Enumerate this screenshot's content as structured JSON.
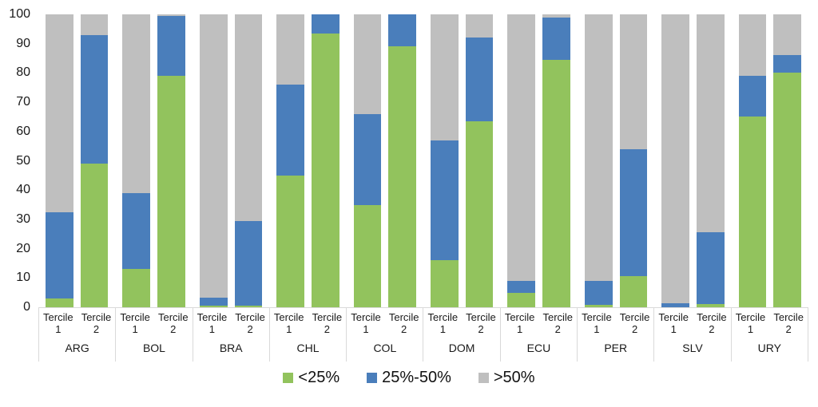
{
  "chart_data": {
    "type": "bar",
    "stacked": true,
    "title": "",
    "xlabel": "",
    "ylabel": "",
    "ylim": [
      0,
      100
    ],
    "grid": false,
    "legend_position": "bottom",
    "y_ticks": [
      "0",
      "10",
      "20",
      "30",
      "40",
      "50",
      "60",
      "70",
      "80",
      "90",
      "100"
    ],
    "series_names": [
      "<25%",
      "25%-50%",
      ">50%"
    ],
    "colors": {
      "lt25": "#92C35D",
      "p25_50": "#4A7EBB",
      "gt50": "#BFBFBF"
    },
    "axis_line_color": "#d9d9d9",
    "groups": [
      {
        "country": "ARG",
        "bars": [
          {
            "label": "Tercile 1",
            "values": {
              "lt25": 3,
              "p25_50": 29.5,
              "gt50": 67.5
            }
          },
          {
            "label": "Tercile 2",
            "values": {
              "lt25": 49,
              "p25_50": 44,
              "gt50": 7
            }
          }
        ]
      },
      {
        "country": "BOL",
        "bars": [
          {
            "label": "Tercile 1",
            "values": {
              "lt25": 13,
              "p25_50": 26,
              "gt50": 61
            }
          },
          {
            "label": "Tercile 2",
            "values": {
              "lt25": 79,
              "p25_50": 20.5,
              "gt50": 0.5
            }
          }
        ]
      },
      {
        "country": "BRA",
        "bars": [
          {
            "label": "Tercile 1",
            "values": {
              "lt25": 0.5,
              "p25_50": 2.7,
              "gt50": 96.8
            }
          },
          {
            "label": "Tercile 2",
            "values": {
              "lt25": 0.5,
              "p25_50": 28.8,
              "gt50": 70.7
            }
          }
        ]
      },
      {
        "country": "CHL",
        "bars": [
          {
            "label": "Tercile 1",
            "values": {
              "lt25": 45,
              "p25_50": 31,
              "gt50": 24
            }
          },
          {
            "label": "Tercile 2",
            "values": {
              "lt25": 93.5,
              "p25_50": 6.5,
              "gt50": 0
            }
          }
        ]
      },
      {
        "country": "COL",
        "bars": [
          {
            "label": "Tercile 1",
            "values": {
              "lt25": 35,
              "p25_50": 31,
              "gt50": 34
            }
          },
          {
            "label": "Tercile 2",
            "values": {
              "lt25": 89,
              "p25_50": 11,
              "gt50": 0
            }
          }
        ]
      },
      {
        "country": "DOM",
        "bars": [
          {
            "label": "Tercile 1",
            "values": {
              "lt25": 16,
              "p25_50": 41,
              "gt50": 43
            }
          },
          {
            "label": "Tercile 2",
            "values": {
              "lt25": 63.5,
              "p25_50": 28.5,
              "gt50": 8
            }
          }
        ]
      },
      {
        "country": "ECU",
        "bars": [
          {
            "label": "Tercile 1",
            "values": {
              "lt25": 5,
              "p25_50": 4,
              "gt50": 91
            }
          },
          {
            "label": "Tercile 2",
            "values": {
              "lt25": 84.5,
              "p25_50": 14.5,
              "gt50": 1
            }
          }
        ]
      },
      {
        "country": "PER",
        "bars": [
          {
            "label": "Tercile 1",
            "values": {
              "lt25": 0.7,
              "p25_50": 8.3,
              "gt50": 91
            }
          },
          {
            "label": "Tercile 2",
            "values": {
              "lt25": 10.5,
              "p25_50": 43.5,
              "gt50": 46
            }
          }
        ]
      },
      {
        "country": "SLV",
        "bars": [
          {
            "label": "Tercile 1",
            "values": {
              "lt25": 0,
              "p25_50": 1.3,
              "gt50": 98.7
            }
          },
          {
            "label": "Tercile 2",
            "values": {
              "lt25": 1,
              "p25_50": 24.7,
              "gt50": 74.3
            }
          }
        ]
      },
      {
        "country": "URY",
        "bars": [
          {
            "label": "Tercile 1",
            "values": {
              "lt25": 65,
              "p25_50": 14,
              "gt50": 21
            }
          },
          {
            "label": "Tercile 2",
            "values": {
              "lt25": 80,
              "p25_50": 6,
              "gt50": 14
            }
          }
        ]
      }
    ],
    "legend": [
      {
        "key": "lt25",
        "label": "<25%"
      },
      {
        "key": "p25_50",
        "label": "25%-50%"
      },
      {
        "key": "gt50",
        "label": ">50%"
      }
    ]
  }
}
